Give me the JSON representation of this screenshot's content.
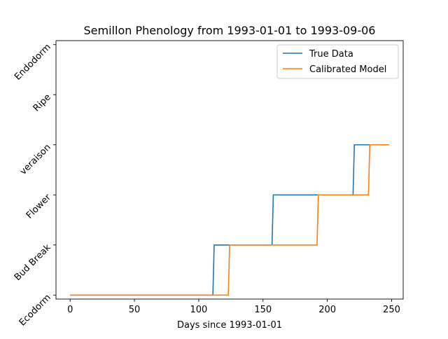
{
  "chart_data": {
    "type": "line",
    "title": "Semillon Phenology from 1993-01-01 to 1993-09-06",
    "xlabel": "Days since 1993-01-01",
    "ylabel": "",
    "xlim": [
      -11,
      259
    ],
    "ylim": [
      -0.08,
      5.08
    ],
    "x_ticks": [
      0,
      50,
      100,
      150,
      200,
      250
    ],
    "y_ticks": [
      {
        "value": 0,
        "label": "Ecodorm"
      },
      {
        "value": 1,
        "label": "Bud Break"
      },
      {
        "value": 2,
        "label": "Flower"
      },
      {
        "value": 3,
        "label": "veraison"
      },
      {
        "value": 4,
        "label": "Ripe"
      },
      {
        "value": 5,
        "label": "Endodorm"
      }
    ],
    "grid": false,
    "legend_position": "upper right",
    "series": [
      {
        "name": "True Data",
        "color": "#1f77b4",
        "step_points": [
          [
            0,
            0
          ],
          [
            111,
            0
          ],
          [
            112,
            1
          ],
          [
            157,
            1
          ],
          [
            158,
            2
          ],
          [
            220,
            2
          ],
          [
            221,
            3
          ],
          [
            248,
            3
          ]
        ]
      },
      {
        "name": "Calibrated Model",
        "color": "#ff7f0e",
        "step_points": [
          [
            0,
            0
          ],
          [
            123,
            0
          ],
          [
            124,
            1
          ],
          [
            192,
            1
          ],
          [
            193,
            2
          ],
          [
            232,
            2
          ],
          [
            233,
            3
          ],
          [
            248,
            3
          ]
        ]
      }
    ]
  }
}
